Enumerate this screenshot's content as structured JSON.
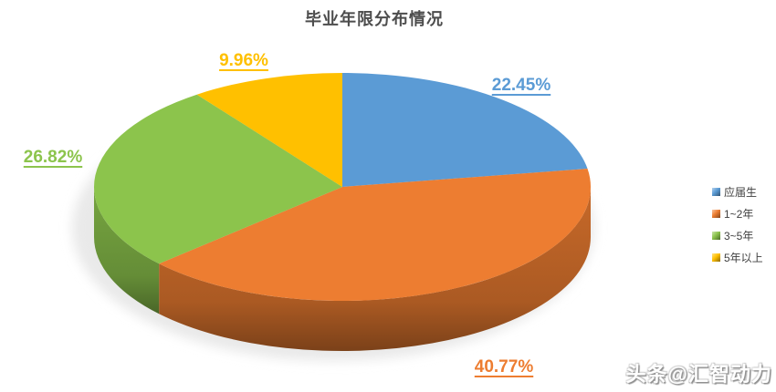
{
  "page": {
    "background": "#ffffff"
  },
  "chart_data": {
    "type": "pie",
    "effect": "3d",
    "title": "毕业年限分布情况",
    "title_color": "#4d4d4d",
    "start_angle_deg": 0,
    "direction": "clockwise",
    "legend_position": "right",
    "grid": false,
    "series": [
      {
        "name": "应届生",
        "value": 22.45,
        "label": "22.45%",
        "color": "#5B9BD5"
      },
      {
        "name": "1~2年",
        "value": 40.77,
        "label": "40.77%",
        "color": "#ED7D31"
      },
      {
        "name": "3~5年",
        "value": 26.82,
        "label": "26.82%",
        "color": "#8CC44C"
      },
      {
        "name": "5年以上",
        "value": 9.96,
        "label": "9.96%",
        "color": "#FFC000"
      }
    ]
  },
  "watermark": {
    "text": "头条@汇智动力"
  }
}
